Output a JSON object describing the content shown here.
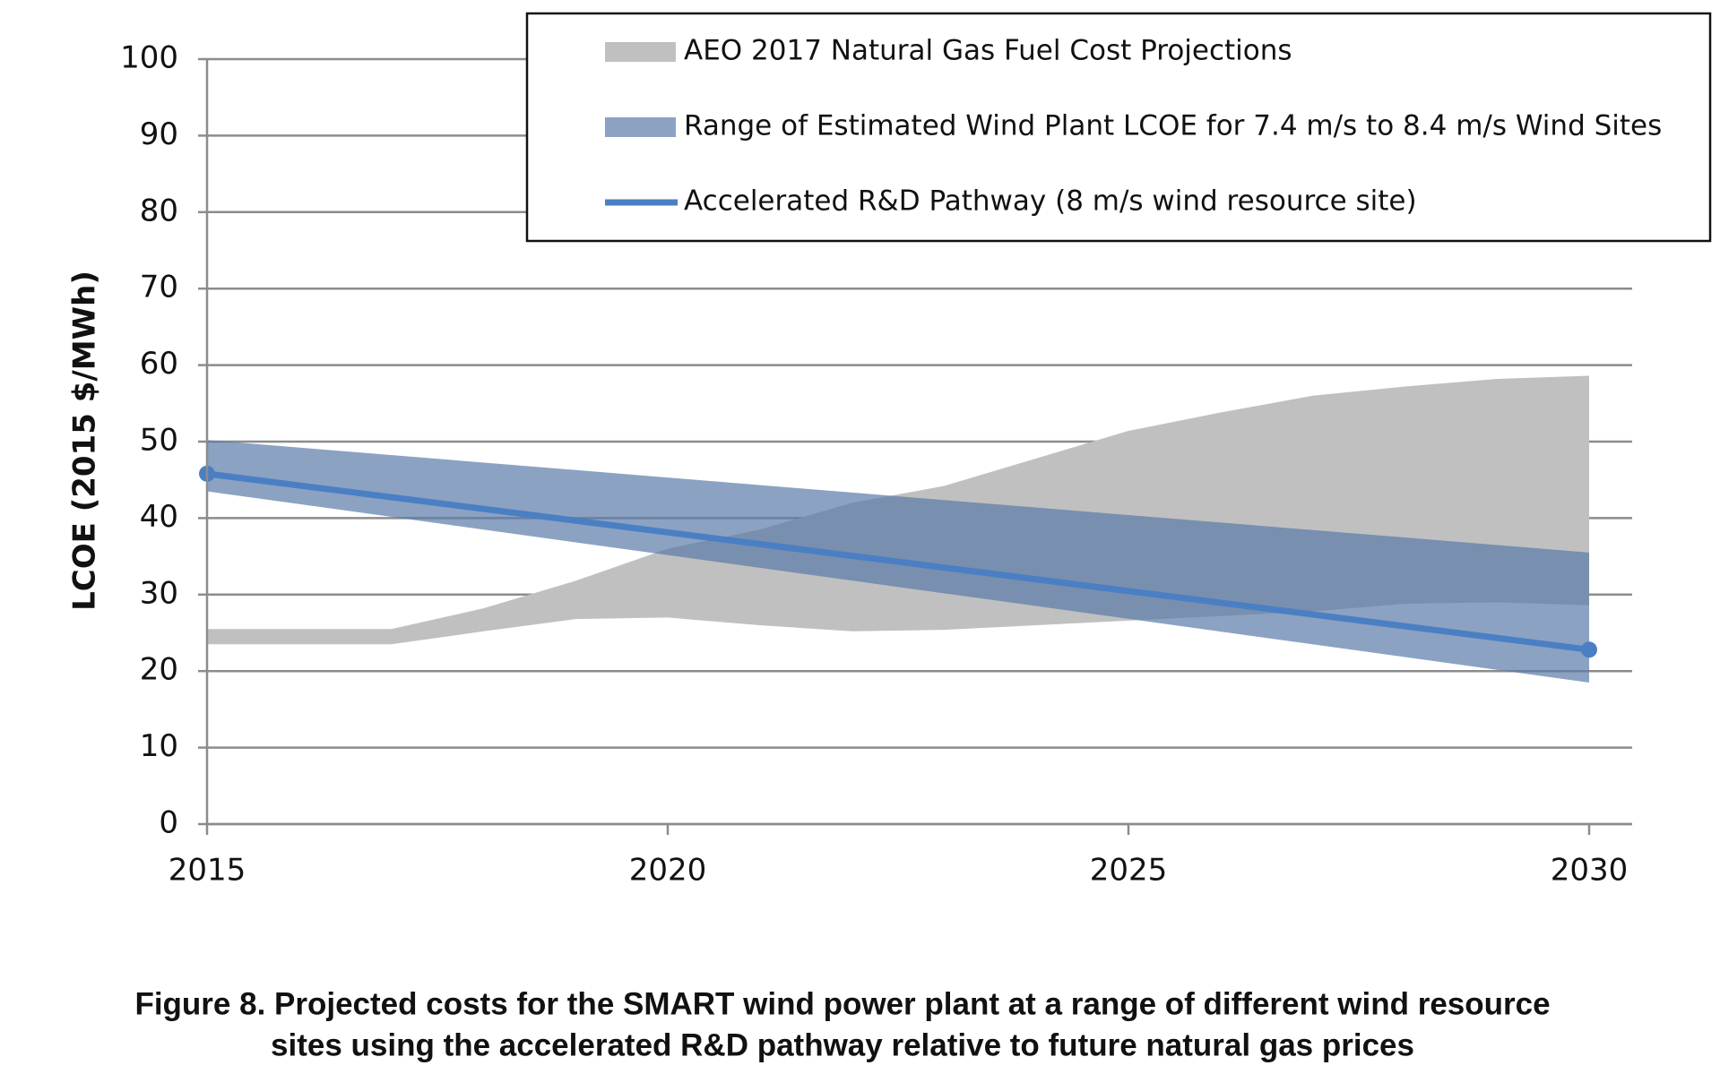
{
  "chart_data": {
    "type": "range_area",
    "y_label": "LCOE (2015 $/MWh)",
    "caption": [
      "Figure 8. Projected costs for the SMART wind power plant at a range of different wind resource",
      "sites using the accelerated R&D pathway relative to future natural gas prices"
    ],
    "xlim": [
      2015,
      2030
    ],
    "xticks": [
      2015,
      2020,
      2025,
      2030
    ],
    "ylim": [
      0,
      100
    ],
    "yticks": [
      0,
      10,
      20,
      30,
      40,
      50,
      60,
      70,
      80,
      90,
      100
    ],
    "grid": true,
    "legend": "top-right",
    "series": [
      {
        "name": "AEO 2017 Natural Gas Fuel Cost Projections",
        "type": "range_area",
        "color": "#c0c0c0",
        "x": [
          2015,
          2016,
          2017,
          2018,
          2019,
          2020,
          2021,
          2022,
          2023,
          2024,
          2025,
          2026,
          2027,
          2028,
          2029,
          2030
        ],
        "low": [
          23.5,
          23.5,
          23.5,
          25.2,
          26.8,
          27,
          26,
          25.2,
          25.4,
          26,
          26.6,
          27.2,
          27.8,
          28.8,
          29,
          28.6
        ],
        "high": [
          25.5,
          25.5,
          25.5,
          28.2,
          31.8,
          36,
          38.5,
          42,
          44.2,
          47.8,
          51.4,
          53.8,
          56,
          57.2,
          58.2,
          58.6
        ]
      },
      {
        "name": "Range of Estimated Wind Plant LCOE for 7.4 m/s to 8.4 m/s Wind Sites",
        "type": "range_area",
        "color": "#5a7aa8",
        "x": [
          2015,
          2030
        ],
        "low": [
          43.5,
          18.5
        ],
        "high": [
          50.2,
          35.5
        ]
      },
      {
        "name": "Accelerated R&D Pathway (8 m/s wind resource site)",
        "type": "line",
        "color": "#4a7fc4",
        "x": [
          2015,
          2030
        ],
        "values": [
          45.8,
          22.8
        ]
      }
    ]
  }
}
